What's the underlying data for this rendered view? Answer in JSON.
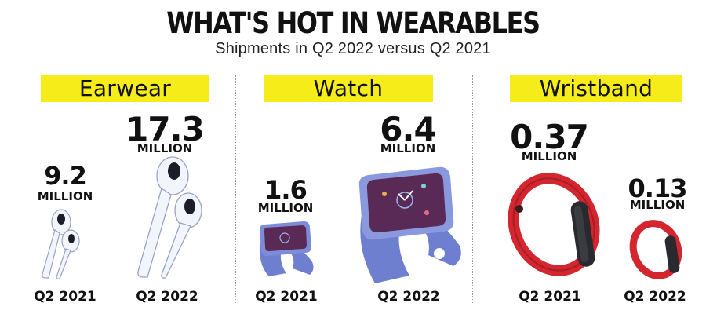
{
  "title": "WHAT'S HOT IN WEARABLES",
  "subtitle": "Shipments in Q2 2022 versus Q2 2021",
  "colors": {
    "category_bg": "#f6ec19",
    "watch": "#6f7fd0",
    "watch_face": "#5a2a57",
    "wristband": "#d3262f",
    "earbuds": "#f2f4fb"
  },
  "chart_data": {
    "type": "bar",
    "unit": "MILLION",
    "categories": [
      "Earwear",
      "Watch",
      "Wristband"
    ],
    "series": [
      {
        "name": "Q2 2021",
        "values": [
          9.2,
          1.6,
          0.37
        ]
      },
      {
        "name": "Q2 2022",
        "values": [
          17.3,
          6.4,
          0.13
        ]
      }
    ]
  },
  "labels": {
    "earwear": {
      "category": "Earwear",
      "q2021_value": "9.2",
      "q2022_value": "17.3",
      "unit": "MILLION",
      "q2021": "Q2 2021",
      "q2022": "Q2 2022"
    },
    "watch": {
      "category": "Watch",
      "q2021_value": "1.6",
      "q2022_value": "6.4",
      "unit": "MILLION",
      "q2021": "Q2 2021",
      "q2022": "Q2 2022"
    },
    "wristband": {
      "category": "Wristband",
      "q2021_value": "0.37",
      "q2022_value": "0.13",
      "unit": "MILLION",
      "q2021": "Q2 2021",
      "q2022": "Q2 2022"
    }
  }
}
